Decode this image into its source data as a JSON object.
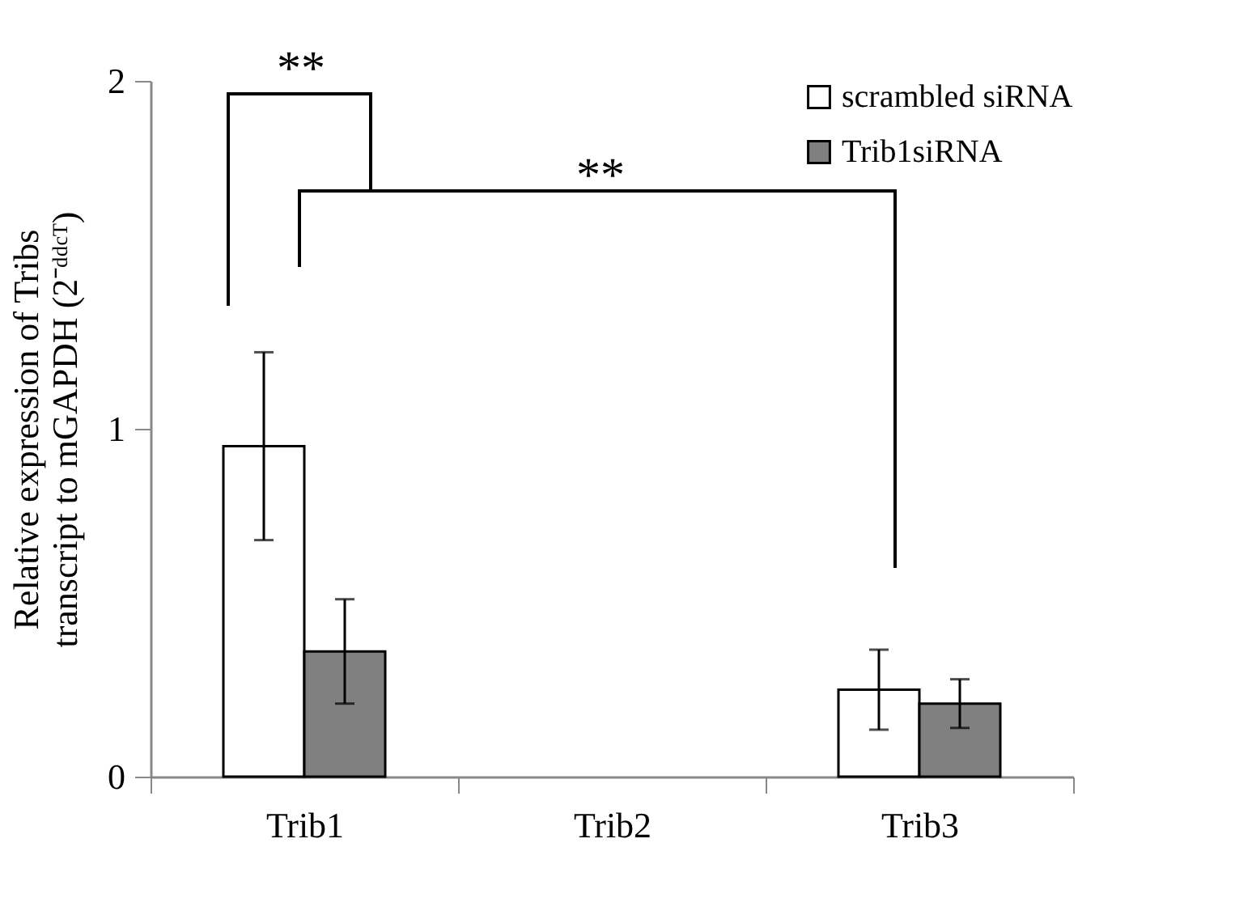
{
  "chart_data": {
    "type": "bar",
    "ylabel": "Relative expression of Tribs transcript to mGAPDH (2⁻ᵈᵈᶜᵀ)",
    "categories": [
      "Trib1",
      "Trib2",
      "Trib3"
    ],
    "series": [
      {
        "name": "scrambled siRNA",
        "color": "#ffffff",
        "values": [
          0.95,
          0,
          0.25
        ],
        "errors": [
          0.27,
          null,
          0.115
        ]
      },
      {
        "name": "Trib1siRNA",
        "color": "#808080",
        "values": [
          0.36,
          0,
          0.21
        ],
        "errors": [
          0.15,
          null,
          0.07
        ]
      }
    ],
    "ylim": [
      0,
      2
    ],
    "yticks": [
      0,
      1,
      2
    ],
    "grid": false,
    "legend": "top right",
    "annotations": [
      "**",
      "**"
    ]
  }
}
